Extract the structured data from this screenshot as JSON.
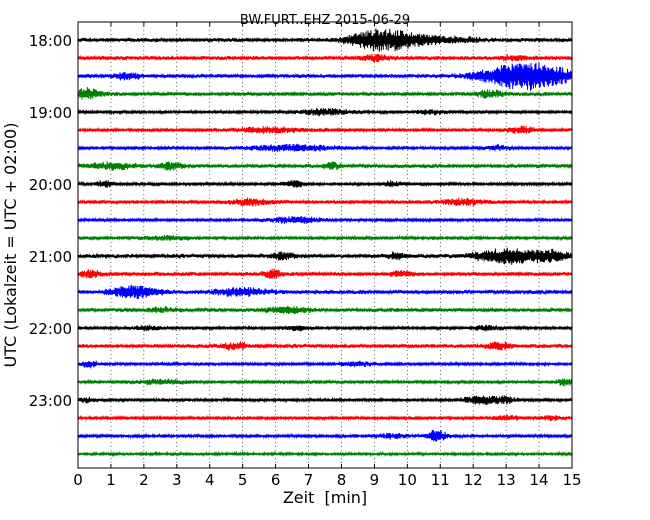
{
  "chart_data": {
    "type": "line",
    "title": "BW.FURT..EHZ 2015-06-29",
    "xlabel": "Zeit  [min]",
    "ylabel": "UTC (Lokalzeit = UTC + 02:00)",
    "xlim": [
      0,
      15
    ],
    "x_ticks": [
      "0",
      "1",
      "2",
      "3",
      "4",
      "5",
      "6",
      "7",
      "8",
      "9",
      "10",
      "11",
      "12",
      "13",
      "14",
      "15"
    ],
    "y_tick_labels": [
      "18:00",
      "19:00",
      "20:00",
      "21:00",
      "22:00",
      "23:00"
    ],
    "grid": "vertical dotted",
    "colors": [
      "#000000",
      "#ff0000",
      "#0000ff",
      "#008000"
    ],
    "rows": [
      {
        "start": "18:00",
        "color": "#000000",
        "base": 1.5,
        "events": [
          [
            9.6,
            0.8,
            8
          ],
          [
            8.9,
            0.5,
            4
          ],
          [
            11.5,
            0.6,
            2
          ]
        ]
      },
      {
        "start": "18:15",
        "color": "#ff0000",
        "base": 1.5,
        "events": [
          [
            9.0,
            0.3,
            3
          ],
          [
            13.3,
            0.4,
            2
          ]
        ]
      },
      {
        "start": "18:30",
        "color": "#0000ff",
        "base": 1.5,
        "events": [
          [
            1.5,
            0.3,
            3
          ],
          [
            13.2,
            0.8,
            9
          ],
          [
            14.2,
            0.7,
            7
          ]
        ]
      },
      {
        "start": "18:45",
        "color": "#008000",
        "base": 1.5,
        "events": [
          [
            0.3,
            0.3,
            5
          ],
          [
            12.5,
            0.3,
            3
          ]
        ]
      },
      {
        "start": "19:00",
        "color": "#000000",
        "base": 1.2,
        "events": [
          [
            7.5,
            0.5,
            3
          ],
          [
            10.7,
            0.3,
            2
          ]
        ]
      },
      {
        "start": "19:15",
        "color": "#ff0000",
        "base": 1.2,
        "events": [
          [
            5.8,
            0.8,
            2.5
          ],
          [
            13.5,
            0.3,
            3
          ]
        ]
      },
      {
        "start": "19:30",
        "color": "#0000ff",
        "base": 1.2,
        "events": [
          [
            6.5,
            0.9,
            3
          ],
          [
            12.8,
            0.3,
            2
          ]
        ]
      },
      {
        "start": "19:45",
        "color": "#008000",
        "base": 1.5,
        "events": [
          [
            1.0,
            0.5,
            3
          ],
          [
            2.8,
            0.3,
            3
          ],
          [
            7.7,
            0.2,
            3
          ]
        ]
      },
      {
        "start": "20:00",
        "color": "#000000",
        "base": 1.2,
        "events": [
          [
            0.8,
            0.2,
            3
          ],
          [
            6.6,
            0.2,
            3
          ],
          [
            9.5,
            0.2,
            2.5
          ]
        ]
      },
      {
        "start": "20:15",
        "color": "#ff0000",
        "base": 1.2,
        "events": [
          [
            5.3,
            0.5,
            3
          ],
          [
            11.7,
            0.5,
            3
          ]
        ]
      },
      {
        "start": "20:30",
        "color": "#0000ff",
        "base": 1.2,
        "events": [
          [
            6.6,
            0.5,
            3
          ]
        ]
      },
      {
        "start": "20:45",
        "color": "#008000",
        "base": 1.2,
        "events": [
          [
            2.7,
            0.5,
            2
          ]
        ]
      },
      {
        "start": "21:00",
        "color": "#000000",
        "base": 1.5,
        "events": [
          [
            6.2,
            0.3,
            3
          ],
          [
            9.7,
            0.2,
            3
          ],
          [
            13.2,
            0.8,
            7
          ],
          [
            14.5,
            0.3,
            3
          ]
        ]
      },
      {
        "start": "21:15",
        "color": "#ff0000",
        "base": 1.5,
        "events": [
          [
            0.4,
            0.3,
            3
          ],
          [
            5.9,
            0.2,
            4
          ],
          [
            9.8,
            0.3,
            2
          ]
        ]
      },
      {
        "start": "21:30",
        "color": "#0000ff",
        "base": 1.5,
        "events": [
          [
            1.7,
            0.5,
            6
          ],
          [
            5.0,
            0.6,
            3.5
          ]
        ]
      },
      {
        "start": "21:45",
        "color": "#008000",
        "base": 1.5,
        "events": [
          [
            6.4,
            0.5,
            3
          ],
          [
            2.5,
            0.3,
            2
          ]
        ]
      },
      {
        "start": "22:00",
        "color": "#000000",
        "base": 1.2,
        "events": [
          [
            2.1,
            0.3,
            2
          ],
          [
            6.6,
            0.3,
            2
          ],
          [
            12.4,
            0.3,
            2
          ]
        ]
      },
      {
        "start": "22:15",
        "color": "#ff0000",
        "base": 1.5,
        "events": [
          [
            4.8,
            0.3,
            3
          ],
          [
            12.8,
            0.3,
            3
          ]
        ]
      },
      {
        "start": "22:30",
        "color": "#0000ff",
        "base": 1.2,
        "events": [
          [
            0.3,
            0.2,
            3
          ],
          [
            8.5,
            0.4,
            2
          ]
        ]
      },
      {
        "start": "22:45",
        "color": "#008000",
        "base": 1.2,
        "events": [
          [
            2.5,
            0.6,
            2
          ],
          [
            14.8,
            0.2,
            3
          ]
        ]
      },
      {
        "start": "23:00",
        "color": "#000000",
        "base": 1.2,
        "events": [
          [
            0.3,
            0.2,
            2
          ],
          [
            12.2,
            0.4,
            3.5
          ],
          [
            13.0,
            0.3,
            2.5
          ]
        ]
      },
      {
        "start": "23:15",
        "color": "#ff0000",
        "base": 1.2,
        "events": [
          [
            13.0,
            0.3,
            2
          ],
          [
            14.4,
            0.2,
            2
          ]
        ]
      },
      {
        "start": "23:30",
        "color": "#0000ff",
        "base": 1.2,
        "events": [
          [
            10.9,
            0.2,
            6
          ],
          [
            9.5,
            0.3,
            2
          ]
        ]
      },
      {
        "start": "23:45",
        "color": "#008000",
        "base": 1.0,
        "events": []
      }
    ]
  }
}
